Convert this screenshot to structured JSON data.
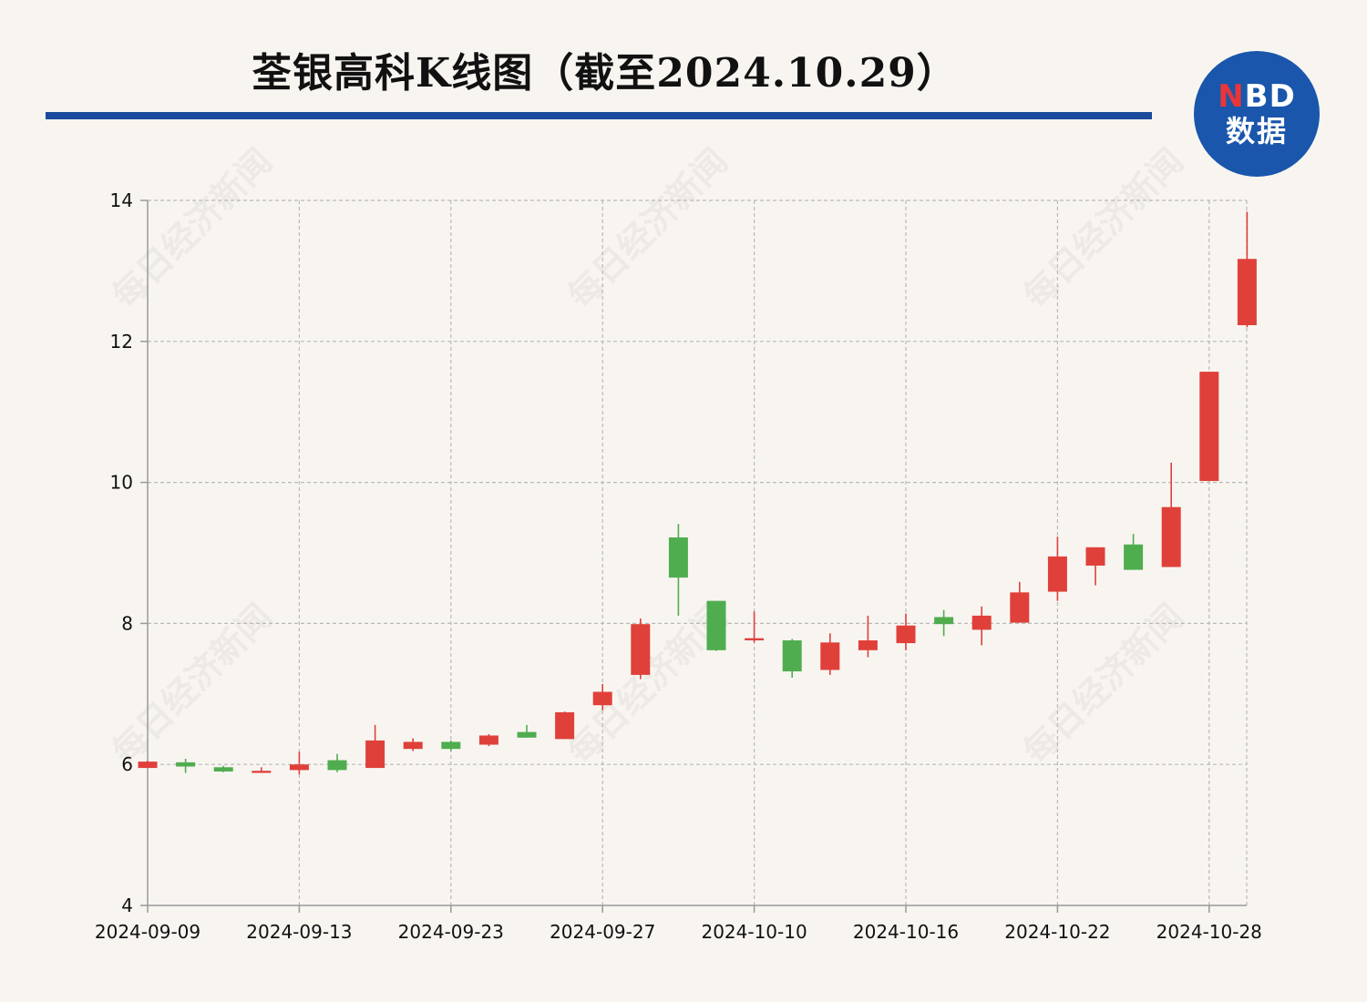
{
  "header": {
    "title": "荃银高科K线图（截至2024.10.29）"
  },
  "logo": {
    "top_n": "N",
    "top_rest": "BD",
    "bottom": "数据"
  },
  "watermark": {
    "text": "每日经济新闻"
  },
  "colors": {
    "up": "#e0403a",
    "down": "#4fad4f",
    "accent": "#1c4a9c",
    "grid": "#b9b9b9"
  },
  "chart_data": {
    "type": "candlestick",
    "title": "荃银高科K线图（截至2024.10.29）",
    "ylim": [
      4,
      14
    ],
    "yticks": [
      4,
      6,
      8,
      10,
      12,
      14
    ],
    "x_tick_labels": [
      {
        "index": 0,
        "label": "2024-09-09"
      },
      {
        "index": 4,
        "label": "2024-09-13"
      },
      {
        "index": 8,
        "label": "2024-09-23"
      },
      {
        "index": 12,
        "label": "2024-09-27"
      },
      {
        "index": 16,
        "label": "2024-10-10"
      },
      {
        "index": 20,
        "label": "2024-10-16"
      },
      {
        "index": 24,
        "label": "2024-10-22"
      },
      {
        "index": 28,
        "label": "2024-10-28"
      }
    ],
    "grid": true,
    "candles": [
      {
        "date": "2024-09-09",
        "open": 5.95,
        "close": 6.04,
        "high": 6.05,
        "low": 5.95
      },
      {
        "date": "2024-09-10",
        "open": 6.03,
        "close": 5.97,
        "high": 6.08,
        "low": 5.88
      },
      {
        "date": "2024-09-11",
        "open": 5.96,
        "close": 5.9,
        "high": 5.98,
        "low": 5.89
      },
      {
        "date": "2024-09-12",
        "open": 5.88,
        "close": 5.91,
        "high": 5.96,
        "low": 5.88
      },
      {
        "date": "2024-09-13",
        "open": 5.92,
        "close": 6.0,
        "high": 6.18,
        "low": 5.86
      },
      {
        "date": "2024-09-18",
        "open": 6.06,
        "close": 5.92,
        "high": 6.15,
        "low": 5.89
      },
      {
        "date": "2024-09-19",
        "open": 5.95,
        "close": 6.34,
        "high": 6.56,
        "low": 5.95
      },
      {
        "date": "2024-09-20",
        "open": 6.22,
        "close": 6.32,
        "high": 6.37,
        "low": 6.19
      },
      {
        "date": "2024-09-23",
        "open": 6.32,
        "close": 6.22,
        "high": 6.34,
        "low": 6.19
      },
      {
        "date": "2024-09-24",
        "open": 6.28,
        "close": 6.41,
        "high": 6.43,
        "low": 6.26
      },
      {
        "date": "2024-09-25",
        "open": 6.46,
        "close": 6.38,
        "high": 6.56,
        "low": 6.38
      },
      {
        "date": "2024-09-26",
        "open": 6.36,
        "close": 6.74,
        "high": 6.75,
        "low": 6.36
      },
      {
        "date": "2024-09-27",
        "open": 6.84,
        "close": 7.03,
        "high": 7.14,
        "low": 6.77
      },
      {
        "date": "2024-09-30",
        "open": 7.27,
        "close": 7.99,
        "high": 8.07,
        "low": 7.21
      },
      {
        "date": "2024-10-08",
        "open": 9.22,
        "close": 8.65,
        "high": 9.41,
        "low": 8.11
      },
      {
        "date": "2024-10-09",
        "open": 8.32,
        "close": 7.62,
        "high": 8.32,
        "low": 7.61
      },
      {
        "date": "2024-10-10",
        "open": 7.76,
        "close": 7.79,
        "high": 8.17,
        "low": 7.73
      },
      {
        "date": "2024-10-11",
        "open": 7.76,
        "close": 7.32,
        "high": 7.78,
        "low": 7.23
      },
      {
        "date": "2024-10-14",
        "open": 7.34,
        "close": 7.73,
        "high": 7.86,
        "low": 7.27
      },
      {
        "date": "2024-10-15",
        "open": 7.62,
        "close": 7.76,
        "high": 8.11,
        "low": 7.52
      },
      {
        "date": "2024-10-16",
        "open": 7.72,
        "close": 7.97,
        "high": 8.14,
        "low": 7.62
      },
      {
        "date": "2024-10-17",
        "open": 8.09,
        "close": 7.99,
        "high": 8.19,
        "low": 7.82
      },
      {
        "date": "2024-10-18",
        "open": 7.91,
        "close": 8.11,
        "high": 8.24,
        "low": 7.69
      },
      {
        "date": "2024-10-21",
        "open": 8.01,
        "close": 8.44,
        "high": 8.59,
        "low": 8.01
      },
      {
        "date": "2024-10-22",
        "open": 8.45,
        "close": 8.95,
        "high": 9.23,
        "low": 8.32
      },
      {
        "date": "2024-10-23",
        "open": 8.82,
        "close": 9.08,
        "high": 9.08,
        "low": 8.54
      },
      {
        "date": "2024-10-24",
        "open": 9.12,
        "close": 8.76,
        "high": 9.27,
        "low": 8.76
      },
      {
        "date": "2024-10-25",
        "open": 8.8,
        "close": 9.65,
        "high": 10.28,
        "low": 8.8
      },
      {
        "date": "2024-10-28",
        "open": 10.02,
        "close": 11.57,
        "high": 11.57,
        "low": 10.02
      },
      {
        "date": "2024-10-29",
        "open": 12.23,
        "close": 13.17,
        "high": 13.84,
        "low": 12.2
      }
    ]
  }
}
